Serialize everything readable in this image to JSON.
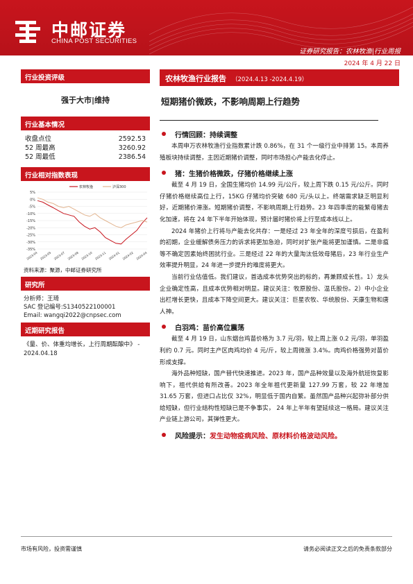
{
  "header": {
    "brand_cn": "中邮证券",
    "brand_en": "CHINA POST SECURITIES",
    "report_type": "证券研究报告：农林牧渔|行业周报",
    "date": "2024 年 4 月 22 日",
    "accent_color": "#c8151d"
  },
  "left": {
    "rating_head": "行业投资评级",
    "rating": "强于大市|维持",
    "basic_head": "行业基本情况",
    "stats": [
      {
        "label": "收盘点位",
        "value": "2592.53"
      },
      {
        "label": "52 周最高",
        "value": "3260.92"
      },
      {
        "label": "52 周最低",
        "value": "2386.54"
      }
    ],
    "index_head": "行业相对指数表现",
    "source_note": "资料来源：聚源，中邮证券研究所",
    "research_head": "研究所",
    "analyst_lines": [
      "分析师：王琦",
      "SAC 登记编号:S1340522100001",
      "Email: wangqi2022@cnpsec.com"
    ],
    "recent_head": "近期研究报告",
    "recent_report": "《量、价、体重均增长，上行周期酝酿中》 - 2024.04.18"
  },
  "chart_data": {
    "type": "line",
    "title": "",
    "x_ticks": [
      "2023-04",
      "2023-05",
      "2023-07",
      "2023-08",
      "2023-10",
      "2023-11",
      "2024-01",
      "2024-02",
      "2024-04"
    ],
    "y_ticks": [
      "5%",
      "0%",
      "-5%",
      "-10%",
      "-15%",
      "-20%",
      "-25%",
      "-30%",
      "-35%"
    ],
    "ylim": [
      -35,
      5
    ],
    "legend": "top",
    "series": [
      {
        "name": "农林牧渔",
        "color": "#c8151d",
        "values": [
          -1,
          -2,
          -4,
          -6,
          -8,
          -10,
          -11,
          -12,
          -16,
          -19,
          -21,
          -20,
          -23,
          -27,
          -29,
          -31,
          -31.5,
          -28,
          -25,
          -22,
          -17,
          -13
        ]
      },
      {
        "name": "沪深300",
        "color": "#e2b48f",
        "values": [
          1,
          0,
          -2,
          -3,
          -5,
          -6,
          -5,
          -7,
          -9,
          -11,
          -12,
          -10,
          -13,
          -15,
          -17,
          -19,
          -20,
          -18,
          -17,
          -16,
          -15,
          -16
        ]
      }
    ]
  },
  "right": {
    "head_title": "农林牧渔行业报告",
    "head_date": "（2024.4.13 -2024.4.19）",
    "main_title": "短期猪价微跌，不影响周期上行趋势",
    "sections": [
      {
        "head": "行情回顾：持续调整",
        "paras": [
          "本周申万农林牧渔行业指数累计跌 0.86%，在 31 个一级行业中排第 15。本周养殖板块持续调整，主因近期猪价调整，同时市场担心产能去化停止。"
        ]
      },
      {
        "head": "猪：生猪价格微跌，仔猪价格继续上涨",
        "paras": [
          "截至 4 月 19 日，全国生猪均价 14.99 元/公斤，较上周下跌 0.15 元/公斤。同时仔猪价格继续高位上行，15KG 仔猪均价突破 680 元/头以上。终端需求缺乏明显利好，近期猪价滞涨。短期猪价调整，不影响周期上行趋势。23 年四季度的能繁母猪去化加速，将在 24 年下半年开始体现，预计届时猪价将上行至成本线以上。",
          "2024 年猪价上行将与产能去化共存：一是经过 23 年全年的深度亏损后，在盈利的初期，企业缓解债务压力的诉求将更加急迫，同时对扩张产能将更加谨慎。二是非瘟等不确定因素始终困扰行业。三是经过 22 年的大量淘汰低效母猪后，23 年行业生产效率提升明显，24 年进一步提升的难度将更大。",
          "当前行业估值低。我们建议，首选成本优势突出的标的，再兼顾成长性。1）龙头企业确定性高，且成本优势相对明显。建议关注：牧原股份、温氏股份。2）中小企业出栏增长更快，且成本下降空间更大。建议关注：巨星农牧、华统股份、天康生物和唐人神。"
        ]
      },
      {
        "head": "白羽鸡：苗价高位震荡",
        "paras": [
          "截至 4 月 19 日，山东烟台鸡苗价格为 3.7 元/羽，较上周上涨 0.2 元/羽，单羽盈利约 0.7 元。同时主产区肉鸡均价 4 元/斤，较上周微涨 3.4%。肉鸡价格强势对苗价形成支撑。",
          "海外品种短缺，国产替代快速推进。2023 年，国产品种效量以及海外航班恢复影响下，祖代供给有所改善。2023 年全年祖代更新量 127.99 万套，较 22 年增加 31.65 万套，但进口占比仅 32%，明显低于国内自繁。虽然国产品种兴起弥补部分供给短缺，但行业结构性短缺已是不争事实， 24 年上半年有望延续这一格局。建议关注产业链上游公司，其弹性更大。"
        ]
      }
    ],
    "risk_label": "风险提示：",
    "risk_text": "发生动物疫病风险、原材料价格波动风险。"
  },
  "footer": {
    "left": "市场有风险，投资需谨慎",
    "right": "请务必阅读正文之后的免责条款部分"
  }
}
